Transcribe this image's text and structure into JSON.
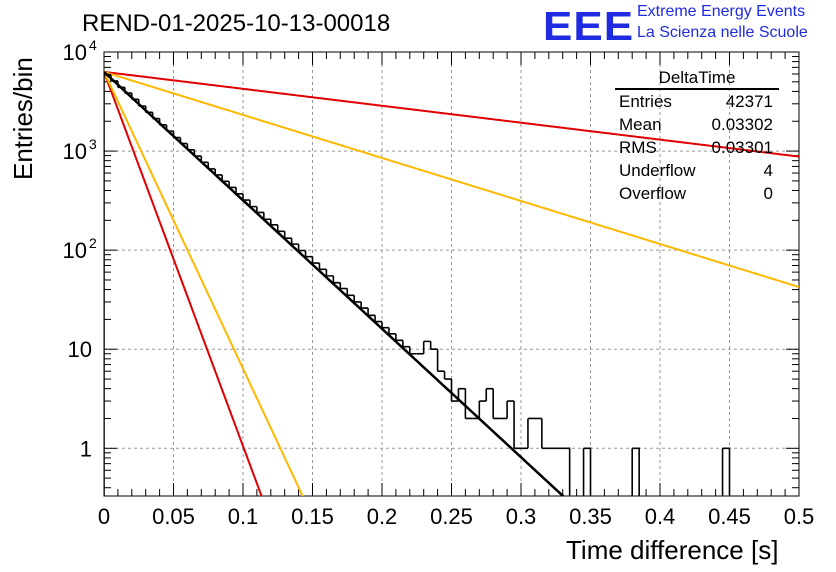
{
  "header": {
    "run_title": "REND-01-2025-10-13-00018",
    "brand": "EEE",
    "brand_line1": "Extreme Energy Events",
    "brand_line2": "La Scienza nelle Scuole"
  },
  "stats_box": {
    "title": "DeltaTime",
    "rows": [
      {
        "label": "Entries",
        "value": "42371"
      },
      {
        "label": "Mean",
        "value": "0.03302"
      },
      {
        "label": "RMS",
        "value": "0.03301"
      },
      {
        "label": "Underflow",
        "value": "4"
      },
      {
        "label": "Overflow",
        "value": "0"
      }
    ]
  },
  "chart_data": {
    "type": "histogram",
    "title": "REND-01-2025-10-13-00018",
    "xlabel": "Time difference [s]",
    "ylabel": "Entries/bin",
    "xlim": [
      0,
      0.5
    ],
    "ylim_log": [
      0.33,
      10000
    ],
    "log_y": true,
    "grid": true,
    "x_ticks": [
      "0",
      "0.05",
      "0.1",
      "0.15",
      "0.2",
      "0.25",
      "0.3",
      "0.35",
      "0.4",
      "0.45",
      "0.5"
    ],
    "y_ticks": [
      {
        "value": 1,
        "label": "1"
      },
      {
        "value": 10,
        "label": "10"
      },
      {
        "value": 100,
        "label": "10",
        "exp": "2"
      },
      {
        "value": 1000,
        "label": "10",
        "exp": "3"
      },
      {
        "value": 10000,
        "label": "10",
        "exp": "4"
      }
    ],
    "bin_width": 0.005,
    "histogram_counts": [
      5900,
      5100,
      4400,
      3850,
      3330,
      2850,
      2460,
      2130,
      1840,
      1590,
      1370,
      1190,
      1030,
      890,
      770,
      660,
      575,
      495,
      430,
      370,
      320,
      275,
      240,
      205,
      180,
      155,
      132,
      115,
      99,
      86,
      74,
      64,
      55,
      47,
      41,
      35,
      30,
      26,
      22,
      19,
      16.5,
      14.3,
      12.3,
      10.6,
      9,
      9,
      12,
      10,
      6,
      5,
      3,
      4,
      2,
      2,
      3,
      4,
      2,
      2,
      3,
      1,
      1,
      2,
      2,
      1,
      1,
      1,
      1,
      0,
      0,
      1,
      0,
      0,
      0,
      0,
      0,
      0,
      1,
      0,
      0,
      0,
      0,
      0,
      0,
      0,
      0,
      0,
      0,
      0,
      0,
      1,
      0,
      0,
      0,
      0,
      0,
      0,
      0,
      0,
      0,
      0
    ],
    "fits": [
      {
        "name": "black-fit",
        "color": "#000000",
        "A": 6300,
        "tau": 0.0335
      },
      {
        "name": "red-steep",
        "color": "#e00000",
        "A": 6300,
        "tau": 0.0115
      },
      {
        "name": "yellow-steep",
        "color": "#ffb800",
        "A": 6300,
        "tau": 0.0145
      },
      {
        "name": "red-shallow",
        "color": "#e00000",
        "A": 6300,
        "tau": 0.254
      },
      {
        "name": "yellow-shallow",
        "color": "#ffb800",
        "A": 6300,
        "tau": 0.1
      },
      {
        "name": "black-fit-bold",
        "color": "#000000",
        "A": 6300,
        "tau": 0.0335
      }
    ]
  }
}
